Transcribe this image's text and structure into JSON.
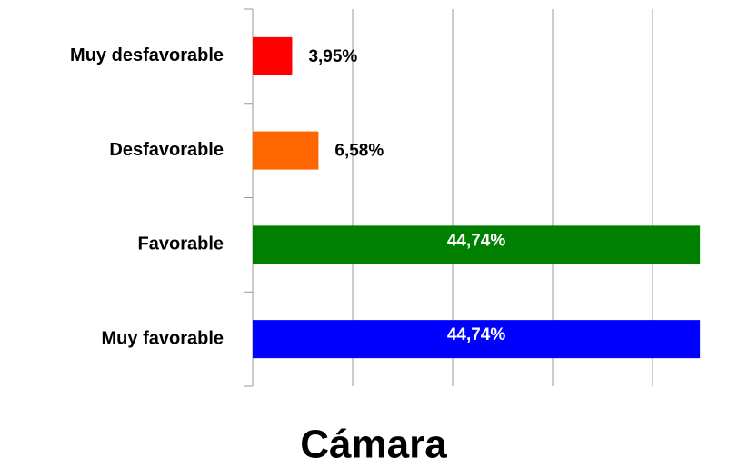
{
  "chart_data": {
    "type": "hbar",
    "title": "Cámara",
    "categories": [
      "Muy desfavorable",
      "Desfavorable",
      "Favorable",
      "Muy favorable"
    ],
    "values": [
      3.95,
      6.58,
      44.74,
      44.74
    ],
    "value_labels": [
      "3,95%",
      "6,58%",
      "44,74%",
      "44,74%"
    ],
    "colors": [
      "#ff0000",
      "#ff6600",
      "#008000",
      "#0000ff"
    ],
    "xlim": [
      0,
      45
    ],
    "xticks": [
      0,
      10,
      20,
      30,
      40
    ],
    "grid": true
  }
}
